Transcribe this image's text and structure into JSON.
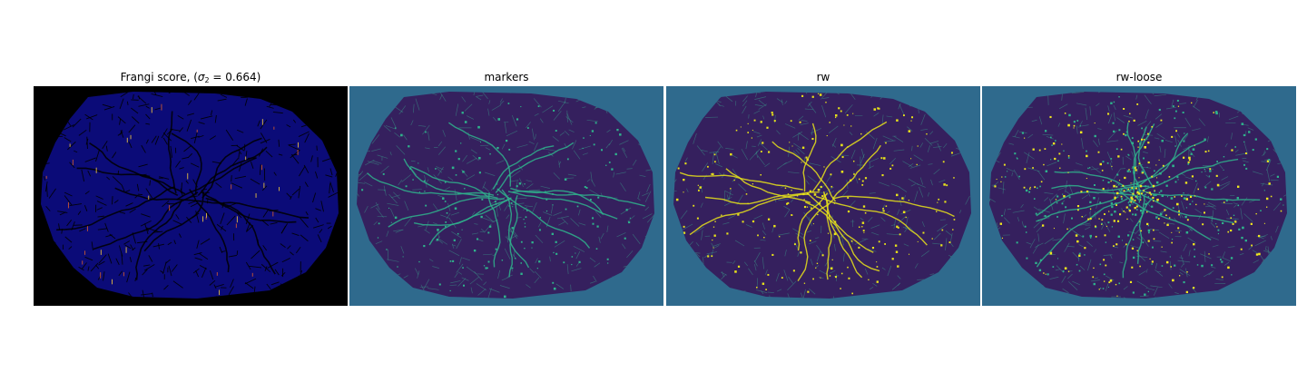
{
  "panels": [
    {
      "title_pre": "Frangi score, (",
      "title_sym": "σ",
      "title_sub": "2",
      "title_post": " = 0.664)",
      "background": "#000000",
      "body": "#0b0b78",
      "streak": "#000000",
      "accents": [
        "#e0602a",
        "#ffd23c"
      ]
    },
    {
      "title": "markers",
      "background": "#2f6a8d",
      "body": "#35205e",
      "streak": "#3a9a8a",
      "accents": [
        "#2fb38c"
      ]
    },
    {
      "title": "rw",
      "background": "#2f6a8d",
      "body": "#35205e",
      "streak": "#3a9a8a",
      "accents": [
        "#e8e31a"
      ]
    },
    {
      "title": "rw-loose",
      "background": "#2f6a8d",
      "body": "#35205e",
      "streak": "#3a9a8a",
      "accents": [
        "#f0e81f",
        "#2fb38c"
      ]
    }
  ]
}
